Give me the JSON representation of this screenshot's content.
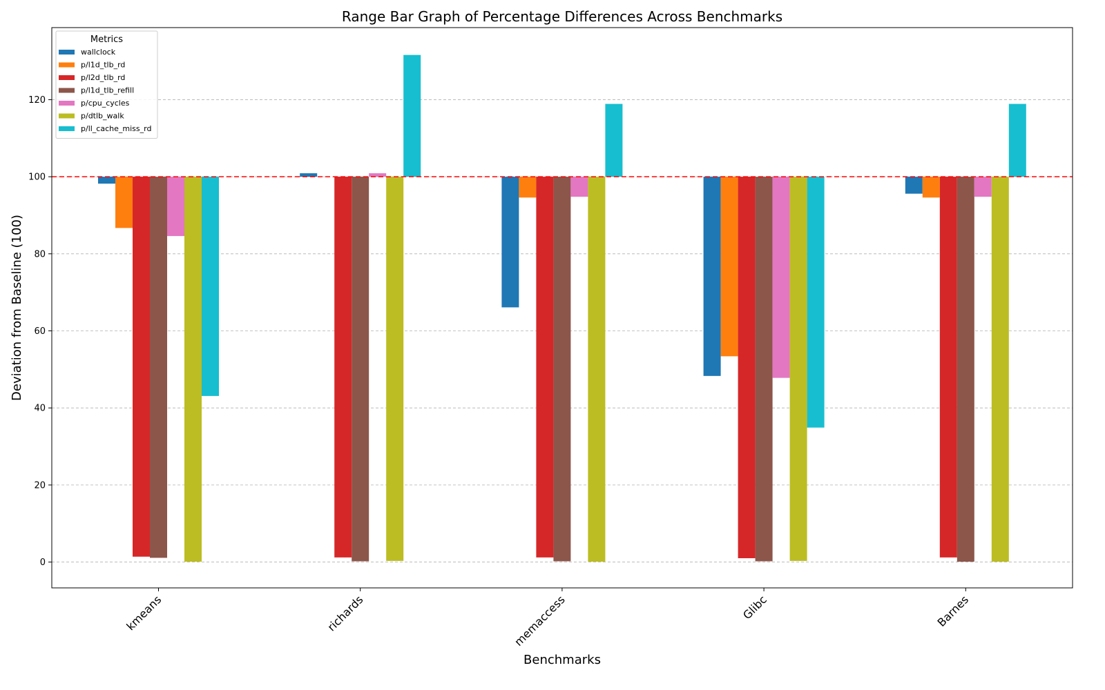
{
  "chart_data": {
    "type": "bar",
    "title": "Range Bar Graph of Percentage Differences Across Benchmarks",
    "xlabel": "Benchmarks",
    "ylabel": "Deviation from Baseline (100)",
    "baseline": 100,
    "ylim": [
      -6.7,
      138.7
    ],
    "yticks": [
      0,
      20,
      40,
      60,
      80,
      100,
      120
    ],
    "grid": "y-dashed",
    "legend": {
      "title": "Metrics",
      "placement": "top-left"
    },
    "categories": [
      "kmeans",
      "richards",
      "memaccess",
      "Glibc",
      "Barnes"
    ],
    "series": [
      {
        "name": "wallclock",
        "color": "#1f77b4",
        "values": [
          98.2,
          100.9,
          66.1,
          48.3,
          95.6
        ]
      },
      {
        "name": "p/l1d_tlb_rd",
        "color": "#ff7f0e",
        "values": [
          86.7,
          100,
          94.6,
          53.4,
          94.6
        ]
      },
      {
        "name": "p/l2d_tlb_rd",
        "color": "#d62728",
        "values": [
          1.4,
          1.2,
          1.2,
          1.0,
          1.2
        ]
      },
      {
        "name": "p/l1d_tlb_refill",
        "color": "#8c564b",
        "values": [
          1.1,
          0.2,
          0.2,
          0.2,
          0.1
        ]
      },
      {
        "name": "p/cpu_cycles",
        "color": "#e377c2",
        "values": [
          84.6,
          100.9,
          94.8,
          47.8,
          94.8
        ]
      },
      {
        "name": "p/dtlb_walk",
        "color": "#bcbd22",
        "values": [
          0.1,
          0.3,
          0.1,
          0.3,
          0.1
        ]
      },
      {
        "name": "p/ll_cache_miss_rd",
        "color": "#17becf",
        "values": [
          43.1,
          131.6,
          118.9,
          34.9,
          118.9
        ]
      }
    ]
  }
}
